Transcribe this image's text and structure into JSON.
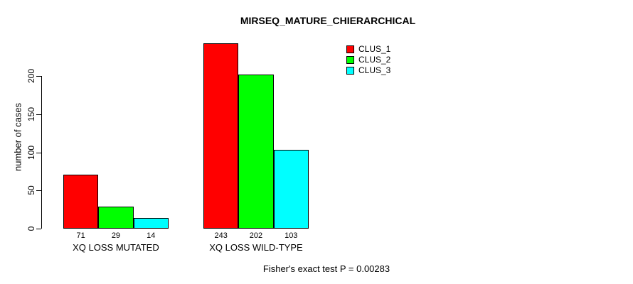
{
  "chart_data": {
    "type": "bar",
    "title": "MIRSEQ_MATURE_CHIERARCHICAL",
    "ylabel": "number of cases",
    "xlabel": "",
    "categories": [
      "XQ LOSS MUTATED",
      "XQ LOSS WILD-TYPE"
    ],
    "series": [
      {
        "name": "CLUS_1",
        "color": "#FF0000",
        "values": [
          71,
          243
        ]
      },
      {
        "name": "CLUS_2",
        "color": "#00FF00",
        "values": [
          29,
          202
        ]
      },
      {
        "name": "CLUS_3",
        "color": "#00FFFF",
        "values": [
          14,
          103
        ]
      }
    ],
    "bar_value_labels": [
      [
        "71",
        "29",
        "14"
      ],
      [
        "243",
        "202",
        "103"
      ]
    ],
    "yticks": [
      0,
      50,
      100,
      150,
      200
    ],
    "ylim": [
      0,
      245
    ],
    "grid": false,
    "legend_position": "top-right",
    "annotation": "Fisher's exact test P = 0.00283"
  }
}
